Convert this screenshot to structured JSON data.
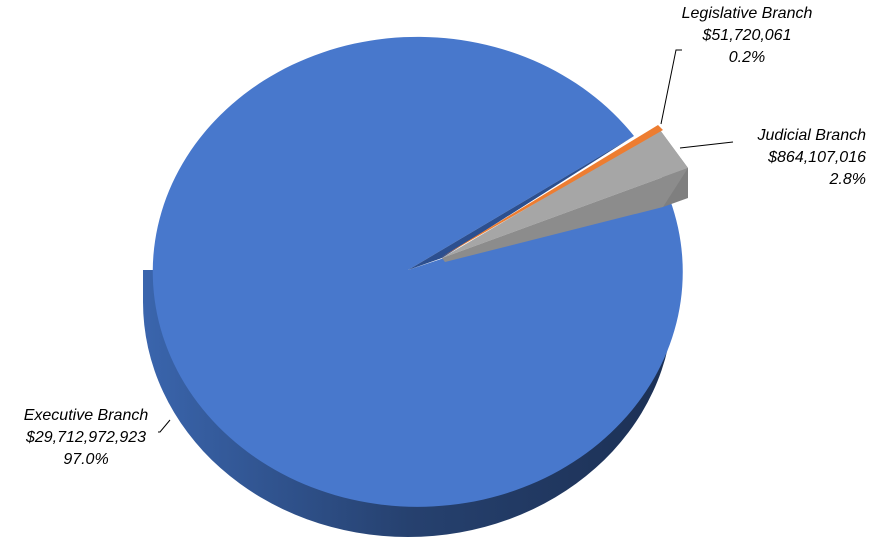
{
  "chart_data": {
    "type": "pie",
    "title": "",
    "style": "3d-exploded",
    "slices": [
      {
        "name": "Executive Branch",
        "value": 29712972923,
        "value_label": "$29,712,972,923",
        "percent": 97.0,
        "percent_label": "97.0%",
        "color": "#4878cc",
        "side_color": "#26416f",
        "exploded": false
      },
      {
        "name": "Judicial Branch",
        "value": 864107016,
        "value_label": "$864,107,016",
        "percent": 2.8,
        "percent_label": "2.8%",
        "color": "#a6a6a6",
        "side_color": "#7f7f7f",
        "exploded": true
      },
      {
        "name": "Legislative Branch",
        "value": 51720061,
        "value_label": "$51,720,061",
        "percent": 0.2,
        "percent_label": "0.2%",
        "color": "#ed7d31",
        "side_color": "#b55d22",
        "exploded": true
      }
    ]
  }
}
